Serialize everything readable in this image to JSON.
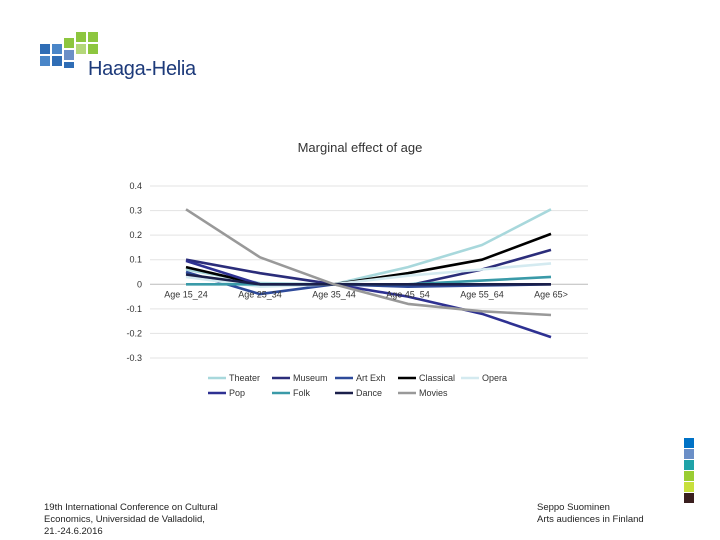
{
  "logo": {
    "text": "Haaga-Helia"
  },
  "colors": {
    "logo_blue": "#2f6db5",
    "logo_mid": "#4a86c8",
    "logo_green": "#8dc63f",
    "side_bar": [
      "#0072c6",
      "#6b8fc7",
      "#1fa3a8",
      "#9acd32",
      "#c8e03c",
      "#3a1f1f"
    ]
  },
  "footer": {
    "left": "19th International Conference on Cultural Economics, Universidad de Valladolid, 21.-24.6.2016",
    "right_line1": "Seppo Suominen",
    "right_line2": "Arts audiences in Finland"
  },
  "chart_data": {
    "type": "line",
    "title": "Marginal effect of age",
    "categories": [
      "Age 15_24",
      "Age 25_34",
      "Age 35_44",
      "Age 45_54",
      "Age 55_64",
      "Age 65>"
    ],
    "ylim": [
      -0.3,
      0.4
    ],
    "yticks": [
      "0.4",
      "0.3",
      "0.2",
      "0.1",
      "0",
      "-0.1",
      "-0.2",
      "-0.3"
    ],
    "ytick_values": [
      0.4,
      0.3,
      0.2,
      0.1,
      0,
      -0.1,
      -0.2,
      -0.3
    ],
    "series": [
      {
        "name": "Theater",
        "color": "#a8d8dc",
        "values": [
          0.06,
          0.005,
          0,
          0.07,
          0.16,
          0.305
        ]
      },
      {
        "name": "Museum",
        "color": "#2b2d7a",
        "values": [
          0.1,
          0.045,
          0,
          -0.005,
          0.06,
          0.14
        ]
      },
      {
        "name": "Art Exh",
        "color": "#2e4a9a",
        "values": [
          0.05,
          -0.04,
          0,
          -0.01,
          -0.005,
          0.0
        ]
      },
      {
        "name": "Classical",
        "color": "#000000",
        "values": [
          0.07,
          0.0,
          0,
          0.045,
          0.1,
          0.205
        ]
      },
      {
        "name": "Opera",
        "color": "#d4eaf0",
        "values": [
          0.03,
          -0.01,
          0,
          0.035,
          0.06,
          0.085
        ]
      },
      {
        "name": "Pop",
        "color": "#2e3192",
        "values": [
          0.095,
          0.0,
          0,
          -0.05,
          -0.12,
          -0.215
        ]
      },
      {
        "name": "Folk",
        "color": "#3a9aa8",
        "values": [
          0.0,
          0.0,
          0,
          0.0,
          0.015,
          0.03
        ]
      },
      {
        "name": "Dance",
        "color": "#1a1f4a",
        "values": [
          0.04,
          0.0,
          0,
          0.0,
          0.0,
          0.0
        ]
      },
      {
        "name": "Movies",
        "color": "#999999",
        "values": [
          0.305,
          0.11,
          0,
          -0.08,
          -0.11,
          -0.125
        ]
      }
    ],
    "legend_position": "bottom"
  }
}
